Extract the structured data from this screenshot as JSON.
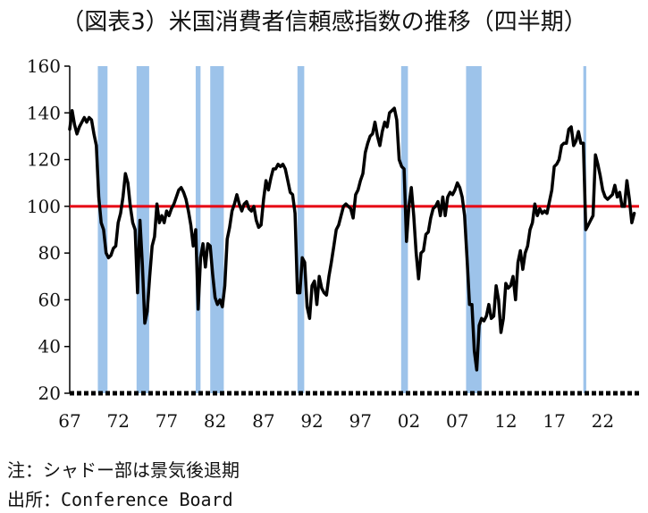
{
  "title": "（図表3）米国消費者信頼感指数の推移（四半期）",
  "notes": {
    "recession": "注：シャドー部は景気後退期",
    "source": "出所：Conference Board"
  },
  "colors": {
    "line": "#000000",
    "reference": "#e60012",
    "shade": "#9dc3ea"
  },
  "chart_data": {
    "type": "line",
    "title": "（図表3）米国消費者信頼感指数の推移（四半期）",
    "xlabel": "",
    "ylabel": "",
    "ylim": [
      20,
      160
    ],
    "xlim": [
      1967,
      2025.75
    ],
    "yticks": [
      20,
      40,
      60,
      80,
      100,
      120,
      140,
      160
    ],
    "xticks": [
      {
        "x": 1967,
        "label": "67"
      },
      {
        "x": 1972,
        "label": "72"
      },
      {
        "x": 1977,
        "label": "77"
      },
      {
        "x": 1982,
        "label": "82"
      },
      {
        "x": 1987,
        "label": "87"
      },
      {
        "x": 1992,
        "label": "92"
      },
      {
        "x": 1997,
        "label": "97"
      },
      {
        "x": 2002,
        "label": "02"
      },
      {
        "x": 2007,
        "label": "07"
      },
      {
        "x": 2012,
        "label": "12"
      },
      {
        "x": 2017,
        "label": "17"
      },
      {
        "x": 2022,
        "label": "22"
      }
    ],
    "reference_line": 100,
    "grid": false,
    "recessions": [
      [
        1969.9,
        1970.9
      ],
      [
        1973.9,
        1975.2
      ],
      [
        1980.0,
        1980.5
      ],
      [
        1981.5,
        1982.9
      ],
      [
        1990.5,
        1991.2
      ],
      [
        2001.2,
        2001.9
      ],
      [
        2007.9,
        2009.5
      ],
      [
        2020.0,
        2020.3
      ]
    ],
    "series": [
      {
        "values": [
          [
            1967.0,
            133
          ],
          [
            1967.25,
            141
          ],
          [
            1967.5,
            135
          ],
          [
            1967.75,
            131
          ],
          [
            1968.0,
            134
          ],
          [
            1968.25,
            136
          ],
          [
            1968.5,
            138
          ],
          [
            1968.75,
            136
          ],
          [
            1969.0,
            138
          ],
          [
            1969.25,
            137
          ],
          [
            1969.5,
            131
          ],
          [
            1969.75,
            126
          ],
          [
            1970.0,
            104
          ],
          [
            1970.25,
            93
          ],
          [
            1970.5,
            90
          ],
          [
            1970.75,
            80
          ],
          [
            1971.0,
            78
          ],
          [
            1971.25,
            79
          ],
          [
            1971.5,
            82
          ],
          [
            1971.75,
            83
          ],
          [
            1972.0,
            93
          ],
          [
            1972.25,
            97
          ],
          [
            1972.5,
            104
          ],
          [
            1972.75,
            114
          ],
          [
            1973.0,
            110
          ],
          [
            1973.25,
            100
          ],
          [
            1973.5,
            93
          ],
          [
            1973.75,
            90
          ],
          [
            1974.0,
            63
          ],
          [
            1974.25,
            94
          ],
          [
            1974.5,
            75
          ],
          [
            1974.75,
            50
          ],
          [
            1975.0,
            55
          ],
          [
            1975.25,
            70
          ],
          [
            1975.5,
            83
          ],
          [
            1975.75,
            87
          ],
          [
            1976.0,
            101
          ],
          [
            1976.25,
            93
          ],
          [
            1976.5,
            96
          ],
          [
            1976.75,
            93
          ],
          [
            1977.0,
            98
          ],
          [
            1977.25,
            96
          ],
          [
            1977.5,
            99
          ],
          [
            1977.75,
            101
          ],
          [
            1978.0,
            104
          ],
          [
            1978.25,
            107
          ],
          [
            1978.5,
            108
          ],
          [
            1978.75,
            106
          ],
          [
            1979.0,
            103
          ],
          [
            1979.25,
            98
          ],
          [
            1979.5,
            92
          ],
          [
            1979.75,
            83
          ],
          [
            1980.0,
            90
          ],
          [
            1980.25,
            56
          ],
          [
            1980.5,
            78
          ],
          [
            1980.75,
            84
          ],
          [
            1981.0,
            74
          ],
          [
            1981.25,
            84
          ],
          [
            1981.5,
            83
          ],
          [
            1981.75,
            71
          ],
          [
            1982.0,
            61
          ],
          [
            1982.25,
            58
          ],
          [
            1982.5,
            60
          ],
          [
            1982.75,
            57
          ],
          [
            1983.0,
            66
          ],
          [
            1983.25,
            86
          ],
          [
            1983.5,
            91
          ],
          [
            1983.75,
            98
          ],
          [
            1984.0,
            101
          ],
          [
            1984.25,
            105
          ],
          [
            1984.5,
            101
          ],
          [
            1984.75,
            98
          ],
          [
            1985.0,
            101
          ],
          [
            1985.25,
            102
          ],
          [
            1985.5,
            99
          ],
          [
            1985.75,
            98
          ],
          [
            1986.0,
            100
          ],
          [
            1986.25,
            94
          ],
          [
            1986.5,
            91
          ],
          [
            1986.75,
            92
          ],
          [
            1987.0,
            103
          ],
          [
            1987.25,
            111
          ],
          [
            1987.5,
            107
          ],
          [
            1987.75,
            112
          ],
          [
            1988.0,
            116
          ],
          [
            1988.25,
            116
          ],
          [
            1988.5,
            118
          ],
          [
            1988.75,
            117
          ],
          [
            1989.0,
            118
          ],
          [
            1989.25,
            116
          ],
          [
            1989.5,
            111
          ],
          [
            1989.75,
            106
          ],
          [
            1990.0,
            105
          ],
          [
            1990.25,
            97
          ],
          [
            1990.5,
            63
          ],
          [
            1990.75,
            63
          ],
          [
            1991.0,
            78
          ],
          [
            1991.25,
            76
          ],
          [
            1991.5,
            57
          ],
          [
            1991.75,
            52
          ],
          [
            1992.0,
            66
          ],
          [
            1992.25,
            68
          ],
          [
            1992.5,
            58
          ],
          [
            1992.75,
            70
          ],
          [
            1993.0,
            65
          ],
          [
            1993.25,
            63
          ],
          [
            1993.5,
            62
          ],
          [
            1993.75,
            70
          ],
          [
            1994.0,
            76
          ],
          [
            1994.25,
            83
          ],
          [
            1994.5,
            90
          ],
          [
            1994.75,
            92
          ],
          [
            1995.0,
            96
          ],
          [
            1995.25,
            100
          ],
          [
            1995.5,
            101
          ],
          [
            1995.75,
            100
          ],
          [
            1996.0,
            99
          ],
          [
            1996.25,
            95
          ],
          [
            1996.5,
            105
          ],
          [
            1996.75,
            107
          ],
          [
            1997.0,
            111
          ],
          [
            1997.25,
            114
          ],
          [
            1997.5,
            123
          ],
          [
            1997.75,
            127
          ],
          [
            1998.0,
            130
          ],
          [
            1998.25,
            131
          ],
          [
            1998.5,
            136
          ],
          [
            1998.75,
            130
          ],
          [
            1999.0,
            126
          ],
          [
            1999.25,
            132
          ],
          [
            1999.5,
            136
          ],
          [
            1999.75,
            134
          ],
          [
            2000.0,
            140
          ],
          [
            2000.25,
            141
          ],
          [
            2000.5,
            142
          ],
          [
            2000.75,
            137
          ],
          [
            2001.0,
            120
          ],
          [
            2001.25,
            117
          ],
          [
            2001.5,
            116
          ],
          [
            2001.75,
            85
          ],
          [
            2002.0,
            100
          ],
          [
            2002.25,
            108
          ],
          [
            2002.5,
            96
          ],
          [
            2002.75,
            80
          ],
          [
            2003.0,
            69
          ],
          [
            2003.25,
            80
          ],
          [
            2003.5,
            81
          ],
          [
            2003.75,
            88
          ],
          [
            2004.0,
            89
          ],
          [
            2004.25,
            95
          ],
          [
            2004.5,
            99
          ],
          [
            2004.75,
            100
          ],
          [
            2005.0,
            102
          ],
          [
            2005.25,
            96
          ],
          [
            2005.5,
            104
          ],
          [
            2005.75,
            96
          ],
          [
            2006.0,
            104
          ],
          [
            2006.25,
            106
          ],
          [
            2006.5,
            105
          ],
          [
            2006.75,
            107
          ],
          [
            2007.0,
            110
          ],
          [
            2007.25,
            108
          ],
          [
            2007.5,
            104
          ],
          [
            2007.75,
            96
          ],
          [
            2008.0,
            78
          ],
          [
            2008.25,
            58
          ],
          [
            2008.5,
            58
          ],
          [
            2008.75,
            38
          ],
          [
            2009.0,
            30
          ],
          [
            2009.25,
            49
          ],
          [
            2009.5,
            52
          ],
          [
            2009.75,
            51
          ],
          [
            2010.0,
            53
          ],
          [
            2010.25,
            58
          ],
          [
            2010.5,
            52
          ],
          [
            2010.75,
            53
          ],
          [
            2011.0,
            66
          ],
          [
            2011.25,
            60
          ],
          [
            2011.5,
            46
          ],
          [
            2011.75,
            52
          ],
          [
            2012.0,
            67
          ],
          [
            2012.25,
            65
          ],
          [
            2012.5,
            66
          ],
          [
            2012.75,
            70
          ],
          [
            2013.0,
            60
          ],
          [
            2013.25,
            76
          ],
          [
            2013.5,
            81
          ],
          [
            2013.75,
            73
          ],
          [
            2014.0,
            80
          ],
          [
            2014.25,
            83
          ],
          [
            2014.5,
            90
          ],
          [
            2014.75,
            93
          ],
          [
            2015.0,
            101
          ],
          [
            2015.25,
            96
          ],
          [
            2015.5,
            99
          ],
          [
            2015.75,
            97
          ],
          [
            2016.0,
            98
          ],
          [
            2016.25,
            97
          ],
          [
            2016.5,
            102
          ],
          [
            2016.75,
            107
          ],
          [
            2017.0,
            117
          ],
          [
            2017.25,
            118
          ],
          [
            2017.5,
            120
          ],
          [
            2017.75,
            126
          ],
          [
            2018.0,
            127
          ],
          [
            2018.25,
            127
          ],
          [
            2018.5,
            133
          ],
          [
            2018.75,
            134
          ],
          [
            2019.0,
            126
          ],
          [
            2019.25,
            128
          ],
          [
            2019.5,
            132
          ],
          [
            2019.75,
            127
          ],
          [
            2020.0,
            127
          ],
          [
            2020.25,
            90
          ],
          [
            2020.5,
            92
          ],
          [
            2020.75,
            94
          ],
          [
            2021.0,
            96
          ],
          [
            2021.25,
            122
          ],
          [
            2021.5,
            118
          ],
          [
            2021.75,
            113
          ],
          [
            2022.0,
            107
          ],
          [
            2022.25,
            104
          ],
          [
            2022.5,
            103
          ],
          [
            2022.75,
            104
          ],
          [
            2023.0,
            105
          ],
          [
            2023.25,
            109
          ],
          [
            2023.5,
            104
          ],
          [
            2023.75,
            106
          ],
          [
            2024.0,
            100
          ],
          [
            2024.25,
            100
          ],
          [
            2024.5,
            111
          ],
          [
            2024.75,
            103
          ],
          [
            2025.0,
            93
          ],
          [
            2025.25,
            97
          ]
        ]
      }
    ]
  }
}
